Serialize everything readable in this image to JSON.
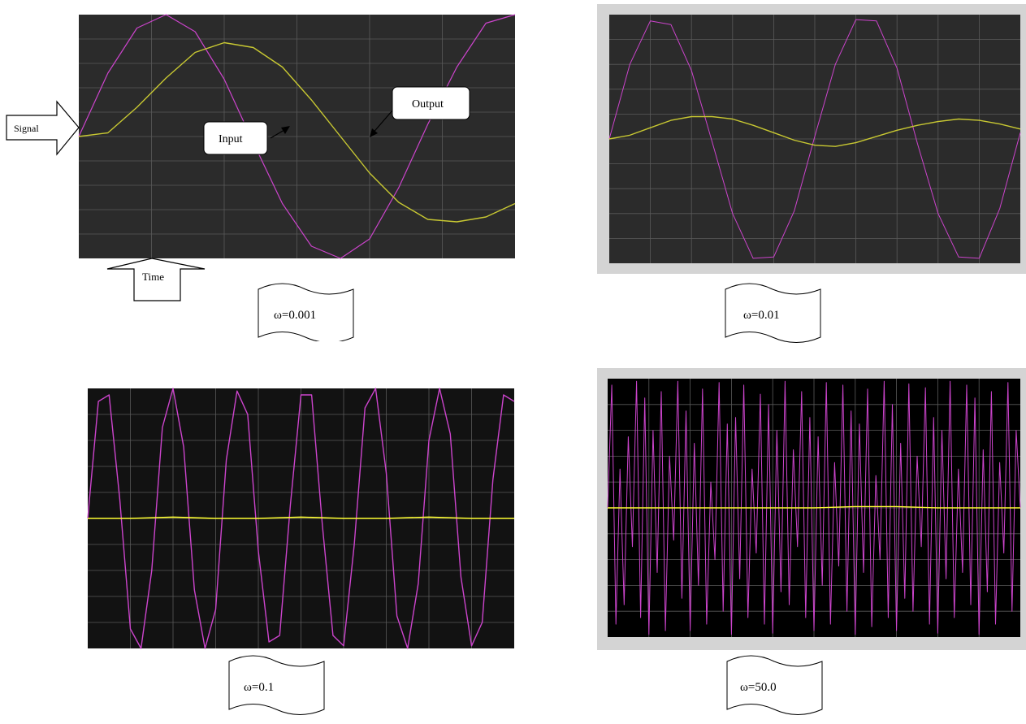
{
  "figure": {
    "annotations": {
      "signal": "Signal",
      "time": "Time",
      "input": "Input",
      "output": "Output"
    }
  },
  "panels": [
    {
      "label": "ω=0.001"
    },
    {
      "label": "ω=0.01"
    },
    {
      "label": "ω=0.1"
    },
    {
      "label": "ω=50.0"
    }
  ],
  "colors": {
    "input": "#cc44cc",
    "output": "#c8c832",
    "output_bright": "#ffff33",
    "scope_bg_dark": "#2b2b2b",
    "scope_bg_black": "#000000",
    "frame_gray": "#d4d4d4",
    "grid": "#5a5a5a"
  },
  "chart_data": [
    {
      "type": "line",
      "title": "",
      "xlabel": "Time",
      "ylabel": "Signal",
      "grid": true,
      "xlim": [
        0,
        6
      ],
      "ylim": [
        -1.0,
        1.0
      ],
      "series": [
        {
          "name": "Input",
          "x": [
            0,
            0.4,
            0.8,
            1.2,
            1.6,
            2.0,
            2.4,
            2.8,
            3.2,
            3.6,
            4.0,
            4.4,
            4.8,
            5.2,
            5.6,
            6.0
          ],
          "y": [
            0,
            0.52,
            0.89,
            1.0,
            0.86,
            0.47,
            -0.05,
            -0.55,
            -0.9,
            -1.0,
            -0.84,
            -0.42,
            0.1,
            0.57,
            0.93,
            1.0
          ]
        },
        {
          "name": "Output",
          "x": [
            0,
            0.4,
            0.8,
            1.2,
            1.6,
            2.0,
            2.4,
            2.8,
            3.2,
            3.6,
            4.0,
            4.4,
            4.8,
            5.2,
            5.6,
            6.0
          ],
          "y": [
            0,
            0.03,
            0.24,
            0.48,
            0.69,
            0.77,
            0.73,
            0.57,
            0.3,
            0.0,
            -0.3,
            -0.54,
            -0.68,
            -0.7,
            -0.66,
            -0.55
          ]
        }
      ]
    },
    {
      "type": "line",
      "title": "",
      "grid": true,
      "xlim": [
        0,
        10
      ],
      "ylim": [
        -1.0,
        1.0
      ],
      "series": [
        {
          "x": [
            0,
            0.5,
            1.0,
            1.5,
            2.0,
            2.5,
            3.0,
            3.5,
            4.0,
            4.5,
            5.0,
            5.5,
            6.0,
            6.5,
            7.0,
            7.5,
            8.0,
            8.5,
            9.0,
            9.5,
            10.0
          ],
          "y": [
            0,
            0.6,
            0.95,
            0.92,
            0.55,
            -0.02,
            -0.6,
            -0.96,
            -0.95,
            -0.58,
            0.02,
            0.6,
            0.96,
            0.95,
            0.57,
            -0.04,
            -0.6,
            -0.95,
            -0.96,
            -0.56,
            0.05
          ]
        },
        {
          "x": [
            0,
            0.5,
            1.0,
            1.5,
            2.0,
            2.5,
            3.0,
            3.5,
            4.0,
            4.5,
            5.0,
            5.5,
            6.0,
            6.5,
            7.0,
            7.5,
            8.0,
            8.5,
            9.0,
            9.5,
            10.0
          ],
          "y": [
            0,
            0.03,
            0.09,
            0.15,
            0.18,
            0.18,
            0.16,
            0.11,
            0.05,
            -0.01,
            -0.05,
            -0.06,
            -0.03,
            0.02,
            0.07,
            0.11,
            0.14,
            0.16,
            0.15,
            0.12,
            0.08
          ]
        }
      ]
    },
    {
      "type": "line",
      "title": "",
      "grid": true,
      "xlim": [
        0,
        10
      ],
      "ylim": [
        -1.0,
        1.0
      ],
      "series": [
        {
          "x": [
            0,
            0.25,
            0.5,
            0.75,
            1.0,
            1.25,
            1.5,
            1.75,
            2.0,
            2.25,
            2.5,
            2.75,
            3.0,
            3.25,
            3.5,
            3.75,
            4.0,
            4.25,
            4.5,
            4.75,
            5.0,
            5.25,
            5.5,
            5.75,
            6.0,
            6.25,
            6.5,
            6.75,
            7.0,
            7.25,
            7.5,
            7.75,
            8.0,
            8.25,
            8.5,
            8.75,
            9.0,
            9.25,
            9.5,
            9.75,
            10.0
          ],
          "y": [
            0,
            0.9,
            0.95,
            0.15,
            -0.85,
            -1.0,
            -0.4,
            0.7,
            1.0,
            0.55,
            -0.55,
            -1.0,
            -0.7,
            0.45,
            0.98,
            0.8,
            -0.25,
            -0.95,
            -0.9,
            0.1,
            0.95,
            0.95,
            -0.05,
            -0.9,
            -0.98,
            -0.2,
            0.85,
            1.0,
            0.35,
            -0.75,
            -1.0,
            -0.5,
            0.6,
            1.0,
            0.65,
            -0.45,
            -0.98,
            -0.8,
            0.3,
            0.95,
            0.9
          ]
        },
        {
          "x": [
            0,
            1,
            2,
            3,
            4,
            5,
            6,
            7,
            8,
            9,
            10
          ],
          "y": [
            0,
            0.0,
            0.01,
            0.0,
            0.0,
            0.01,
            0.0,
            0.0,
            0.01,
            0.0,
            0.0
          ]
        }
      ]
    },
    {
      "type": "line",
      "title": "",
      "grid": true,
      "xlim": [
        0,
        10
      ],
      "ylim": [
        -1.0,
        1.0
      ],
      "series": [
        {
          "x": [
            0,
            0.1,
            0.2,
            0.3,
            0.4,
            0.5,
            0.6,
            0.7,
            0.8,
            0.9,
            1.0,
            1.1,
            1.2,
            1.3,
            1.4,
            1.5,
            1.6,
            1.7,
            1.8,
            1.9,
            2.0,
            2.1,
            2.2,
            2.3,
            2.4,
            2.5,
            2.6,
            2.7,
            2.8,
            2.9,
            3.0,
            3.1,
            3.2,
            3.3,
            3.4,
            3.5,
            3.6,
            3.7,
            3.8,
            3.9,
            4.0,
            4.1,
            4.2,
            4.3,
            4.4,
            4.5,
            4.6,
            4.7,
            4.8,
            4.9,
            5.0,
            5.1,
            5.2,
            5.3,
            5.4,
            5.5,
            5.6,
            5.7,
            5.8,
            5.9,
            6.0,
            6.1,
            6.2,
            6.3,
            6.4,
            6.5,
            6.6,
            6.7,
            6.8,
            6.9,
            7.0,
            7.1,
            7.2,
            7.3,
            7.4,
            7.5,
            7.6,
            7.7,
            7.8,
            7.9,
            8.0,
            8.1,
            8.2,
            8.3,
            8.4,
            8.5,
            8.6,
            8.7,
            8.8,
            8.9,
            9.0,
            9.1,
            9.2,
            9.3,
            9.4,
            9.5,
            9.6,
            9.7,
            9.8,
            9.9,
            10.0
          ],
          "y": [
            0,
            0.95,
            -0.9,
            0.3,
            -0.75,
            0.55,
            -0.3,
            0.98,
            -0.85,
            0.85,
            -0.98,
            0.6,
            -0.5,
            0.9,
            -0.95,
            0.4,
            -0.25,
            0.98,
            -0.7,
            0.75,
            -0.95,
            0.5,
            -0.6,
            0.92,
            -0.9,
            0.2,
            -0.4,
            0.97,
            -0.8,
            0.65,
            -0.98,
            0.7,
            -0.55,
            0.95,
            -0.85,
            0.3,
            -0.35,
            0.88,
            -0.9,
            0.8,
            -0.97,
            0.6,
            -0.65,
            0.98,
            -0.75,
            0.45,
            -0.3,
            0.9,
            -0.85,
            0.7,
            -0.95,
            0.55,
            -0.6,
            0.97,
            -0.9,
            0.35,
            -0.45,
            0.95,
            -0.8,
            0.75,
            -0.98,
            0.65,
            -0.5,
            0.92,
            -0.92,
            0.25,
            -0.4,
            0.98,
            -0.85,
            0.8,
            -0.95,
            0.5,
            -0.7,
            0.96,
            -0.8,
            0.4,
            -0.3,
            0.93,
            -0.9,
            0.7,
            -0.97,
            0.6,
            -0.55,
            0.98,
            -0.85,
            0.3,
            -0.5,
            0.95,
            -0.75,
            0.85,
            -0.98,
            0.45,
            -0.65,
            0.9,
            -0.9,
            0.35,
            -0.35,
            0.97,
            -0.8,
            0.6,
            0.0
          ]
        },
        {
          "x": [
            0,
            1,
            2,
            3,
            4,
            5,
            6,
            7,
            8,
            9,
            10
          ],
          "y": [
            0,
            0.0,
            0.0,
            0.0,
            0.0,
            0.0,
            0.01,
            0.01,
            0.0,
            0.0,
            0.0
          ]
        }
      ]
    }
  ]
}
